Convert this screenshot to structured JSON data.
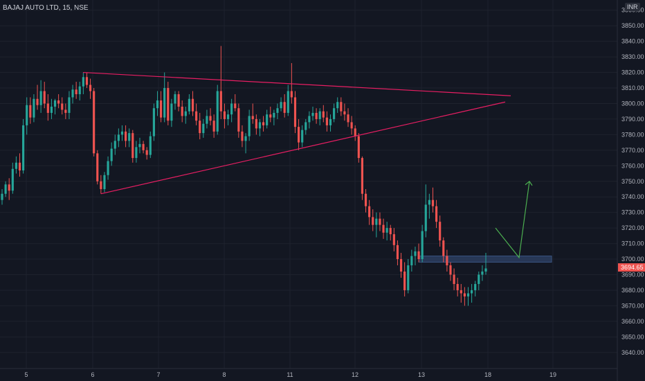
{
  "header": {
    "symbol": "BAJAJ AUTO LTD, 15, NSE",
    "currency": "INR"
  },
  "chart_data": {
    "type": "candlestick",
    "y_ticks": [
      3640,
      3650,
      3660,
      3670,
      3680,
      3690,
      3700,
      3710,
      3720,
      3730,
      3740,
      3750,
      3760,
      3770,
      3780,
      3790,
      3800,
      3810,
      3820,
      3830,
      3840,
      3850,
      3860
    ],
    "y_tick_labels": [
      "3640.00",
      "3650.00",
      "3660.00",
      "3670.00",
      "3680.00",
      "3690.00",
      "3700.00",
      "3710.00",
      "3720.00",
      "3730.00",
      "3740.00",
      "3750.00",
      "3760.00",
      "3770.00",
      "3780.00",
      "3790.00",
      "3800.00",
      "3810.00",
      "3820.00",
      "3830.00",
      "3840.00",
      "3850.00",
      "3860.00"
    ],
    "x_tick_labels": [
      "5",
      "6",
      "7",
      "8",
      "11",
      "12",
      "13",
      "18",
      "19"
    ],
    "ylim": [
      3635,
      3863
    ],
    "last_price": "3694.65",
    "colors": {
      "up": "#26a69a",
      "down": "#ef5350",
      "pattern": "#e91e63",
      "projection": "#4caf50",
      "zone": "#2a3b5c"
    },
    "pattern_lines": [
      {
        "name": "upper-trendline",
        "from": [
          "5",
          3820
        ],
        "to": [
          "18",
          3805
        ]
      },
      {
        "name": "lower-trendline",
        "from": [
          "6",
          3742
        ],
        "to": [
          "18",
          3801
        ]
      }
    ],
    "support_zone": {
      "from": 3698,
      "to": 3702
    },
    "projection_target": 3750,
    "candles": [
      [
        3738,
        3745,
        3735,
        3742
      ],
      [
        3742,
        3750,
        3740,
        3748
      ],
      [
        3748,
        3752,
        3738,
        3744
      ],
      [
        3744,
        3762,
        3742,
        3758
      ],
      [
        3758,
        3766,
        3755,
        3762
      ],
      [
        3762,
        3768,
        3753,
        3757
      ],
      [
        3757,
        3790,
        3755,
        3786
      ],
      [
        3786,
        3804,
        3780,
        3799
      ],
      [
        3799,
        3804,
        3787,
        3791
      ],
      [
        3791,
        3806,
        3788,
        3803
      ],
      [
        3803,
        3812,
        3796,
        3799
      ],
      [
        3799,
        3815,
        3794,
        3808
      ],
      [
        3808,
        3814,
        3797,
        3800
      ],
      [
        3800,
        3806,
        3789,
        3794
      ],
      [
        3794,
        3803,
        3790,
        3798
      ],
      [
        3798,
        3803,
        3793,
        3802
      ],
      [
        3802,
        3806,
        3797,
        3800
      ],
      [
        3800,
        3804,
        3793,
        3796
      ],
      [
        3796,
        3800,
        3790,
        3794
      ],
      [
        3794,
        3808,
        3790,
        3804
      ],
      [
        3804,
        3812,
        3800,
        3809
      ],
      [
        3809,
        3814,
        3803,
        3806
      ],
      [
        3806,
        3814,
        3802,
        3811
      ],
      [
        3811,
        3820,
        3806,
        3817
      ],
      [
        3817,
        3820,
        3810,
        3812
      ],
      [
        3812,
        3816,
        3803,
        3808
      ],
      [
        3808,
        3810,
        3766,
        3768
      ],
      [
        3768,
        3770,
        3748,
        3750
      ],
      [
        3750,
        3754,
        3742,
        3745
      ],
      [
        3745,
        3756,
        3743,
        3754
      ],
      [
        3754,
        3766,
        3751,
        3763
      ],
      [
        3763,
        3775,
        3760,
        3771
      ],
      [
        3771,
        3780,
        3767,
        3776
      ],
      [
        3776,
        3784,
        3772,
        3780
      ],
      [
        3780,
        3786,
        3776,
        3782
      ],
      [
        3782,
        3786,
        3772,
        3776
      ],
      [
        3776,
        3784,
        3772,
        3781
      ],
      [
        3781,
        3783,
        3762,
        3765
      ],
      [
        3765,
        3776,
        3762,
        3772
      ],
      [
        3772,
        3778,
        3768,
        3774
      ],
      [
        3774,
        3776,
        3768,
        3770
      ],
      [
        3770,
        3772,
        3764,
        3767
      ],
      [
        3767,
        3782,
        3765,
        3779
      ],
      [
        3779,
        3800,
        3776,
        3797
      ],
      [
        3797,
        3808,
        3792,
        3802
      ],
      [
        3802,
        3808,
        3788,
        3791
      ],
      [
        3791,
        3820,
        3788,
        3810
      ],
      [
        3810,
        3814,
        3786,
        3789
      ],
      [
        3789,
        3803,
        3785,
        3800
      ],
      [
        3800,
        3808,
        3796,
        3806
      ],
      [
        3806,
        3808,
        3795,
        3798
      ],
      [
        3798,
        3802,
        3788,
        3792
      ],
      [
        3792,
        3798,
        3787,
        3795
      ],
      [
        3795,
        3806,
        3793,
        3803
      ],
      [
        3803,
        3808,
        3792,
        3795
      ],
      [
        3795,
        3800,
        3786,
        3789
      ],
      [
        3789,
        3794,
        3777,
        3781
      ],
      [
        3781,
        3790,
        3778,
        3787
      ],
      [
        3787,
        3796,
        3784,
        3792
      ],
      [
        3792,
        3797,
        3786,
        3789
      ],
      [
        3789,
        3793,
        3778,
        3782
      ],
      [
        3782,
        3812,
        3780,
        3808
      ],
      [
        3808,
        3837,
        3790,
        3795
      ],
      [
        3795,
        3800,
        3784,
        3790
      ],
      [
        3790,
        3796,
        3786,
        3793
      ],
      [
        3793,
        3803,
        3788,
        3800
      ],
      [
        3800,
        3806,
        3795,
        3797
      ],
      [
        3797,
        3800,
        3778,
        3782
      ],
      [
        3782,
        3786,
        3772,
        3776
      ],
      [
        3776,
        3781,
        3768,
        3779
      ],
      [
        3779,
        3796,
        3776,
        3792
      ],
      [
        3792,
        3800,
        3787,
        3790
      ],
      [
        3790,
        3793,
        3780,
        3784
      ],
      [
        3784,
        3790,
        3779,
        3788
      ],
      [
        3788,
        3792,
        3782,
        3786
      ],
      [
        3786,
        3796,
        3784,
        3793
      ],
      [
        3793,
        3798,
        3788,
        3791
      ],
      [
        3791,
        3796,
        3786,
        3794
      ],
      [
        3794,
        3800,
        3790,
        3797
      ],
      [
        3797,
        3804,
        3795,
        3801
      ],
      [
        3801,
        3806,
        3791,
        3794
      ],
      [
        3794,
        3812,
        3792,
        3808
      ],
      [
        3808,
        3826,
        3800,
        3804
      ],
      [
        3804,
        3808,
        3781,
        3785
      ],
      [
        3785,
        3790,
        3770,
        3775
      ],
      [
        3775,
        3786,
        3772,
        3783
      ],
      [
        3783,
        3790,
        3780,
        3788
      ],
      [
        3788,
        3795,
        3784,
        3792
      ],
      [
        3792,
        3798,
        3789,
        3794
      ],
      [
        3794,
        3797,
        3787,
        3790
      ],
      [
        3790,
        3797,
        3786,
        3795
      ],
      [
        3795,
        3799,
        3788,
        3791
      ],
      [
        3791,
        3795,
        3782,
        3786
      ],
      [
        3786,
        3793,
        3782,
        3790
      ],
      [
        3790,
        3800,
        3788,
        3797
      ],
      [
        3797,
        3804,
        3794,
        3801
      ],
      [
        3801,
        3804,
        3792,
        3795
      ],
      [
        3795,
        3800,
        3789,
        3793
      ],
      [
        3793,
        3797,
        3785,
        3788
      ],
      [
        3788,
        3792,
        3780,
        3784
      ],
      [
        3784,
        3786,
        3776,
        3779
      ],
      [
        3779,
        3781,
        3762,
        3765
      ],
      [
        3765,
        3766,
        3738,
        3742
      ],
      [
        3742,
        3745,
        3730,
        3734
      ],
      [
        3734,
        3738,
        3722,
        3727
      ],
      [
        3727,
        3732,
        3718,
        3722
      ],
      [
        3722,
        3730,
        3714,
        3726
      ],
      [
        3726,
        3730,
        3718,
        3722
      ],
      [
        3722,
        3726,
        3713,
        3717
      ],
      [
        3717,
        3724,
        3712,
        3720
      ],
      [
        3720,
        3722,
        3712,
        3716
      ],
      [
        3716,
        3720,
        3705,
        3709
      ],
      [
        3709,
        3712,
        3696,
        3700
      ],
      [
        3700,
        3704,
        3688,
        3692
      ],
      [
        3692,
        3698,
        3676,
        3680
      ],
      [
        3680,
        3700,
        3678,
        3696
      ],
      [
        3696,
        3706,
        3692,
        3702
      ],
      [
        3702,
        3708,
        3696,
        3705
      ],
      [
        3705,
        3710,
        3698,
        3700
      ],
      [
        3700,
        3722,
        3698,
        3718
      ],
      [
        3718,
        3748,
        3714,
        3735
      ],
      [
        3735,
        3742,
        3726,
        3738
      ],
      [
        3738,
        3746,
        3730,
        3734
      ],
      [
        3734,
        3738,
        3720,
        3724
      ],
      [
        3724,
        3728,
        3708,
        3712
      ],
      [
        3712,
        3714,
        3698,
        3702
      ],
      [
        3702,
        3706,
        3692,
        3696
      ],
      [
        3696,
        3698,
        3686,
        3690
      ],
      [
        3690,
        3694,
        3680,
        3684
      ],
      [
        3684,
        3688,
        3676,
        3680
      ],
      [
        3680,
        3684,
        3672,
        3678
      ],
      [
        3678,
        3682,
        3670,
        3676
      ],
      [
        3676,
        3682,
        3670,
        3678
      ],
      [
        3678,
        3684,
        3672,
        3680
      ],
      [
        3680,
        3686,
        3676,
        3684
      ],
      [
        3684,
        3692,
        3680,
        3690
      ],
      [
        3690,
        3696,
        3686,
        3692
      ],
      [
        3692,
        3704,
        3690,
        3694
      ]
    ]
  }
}
